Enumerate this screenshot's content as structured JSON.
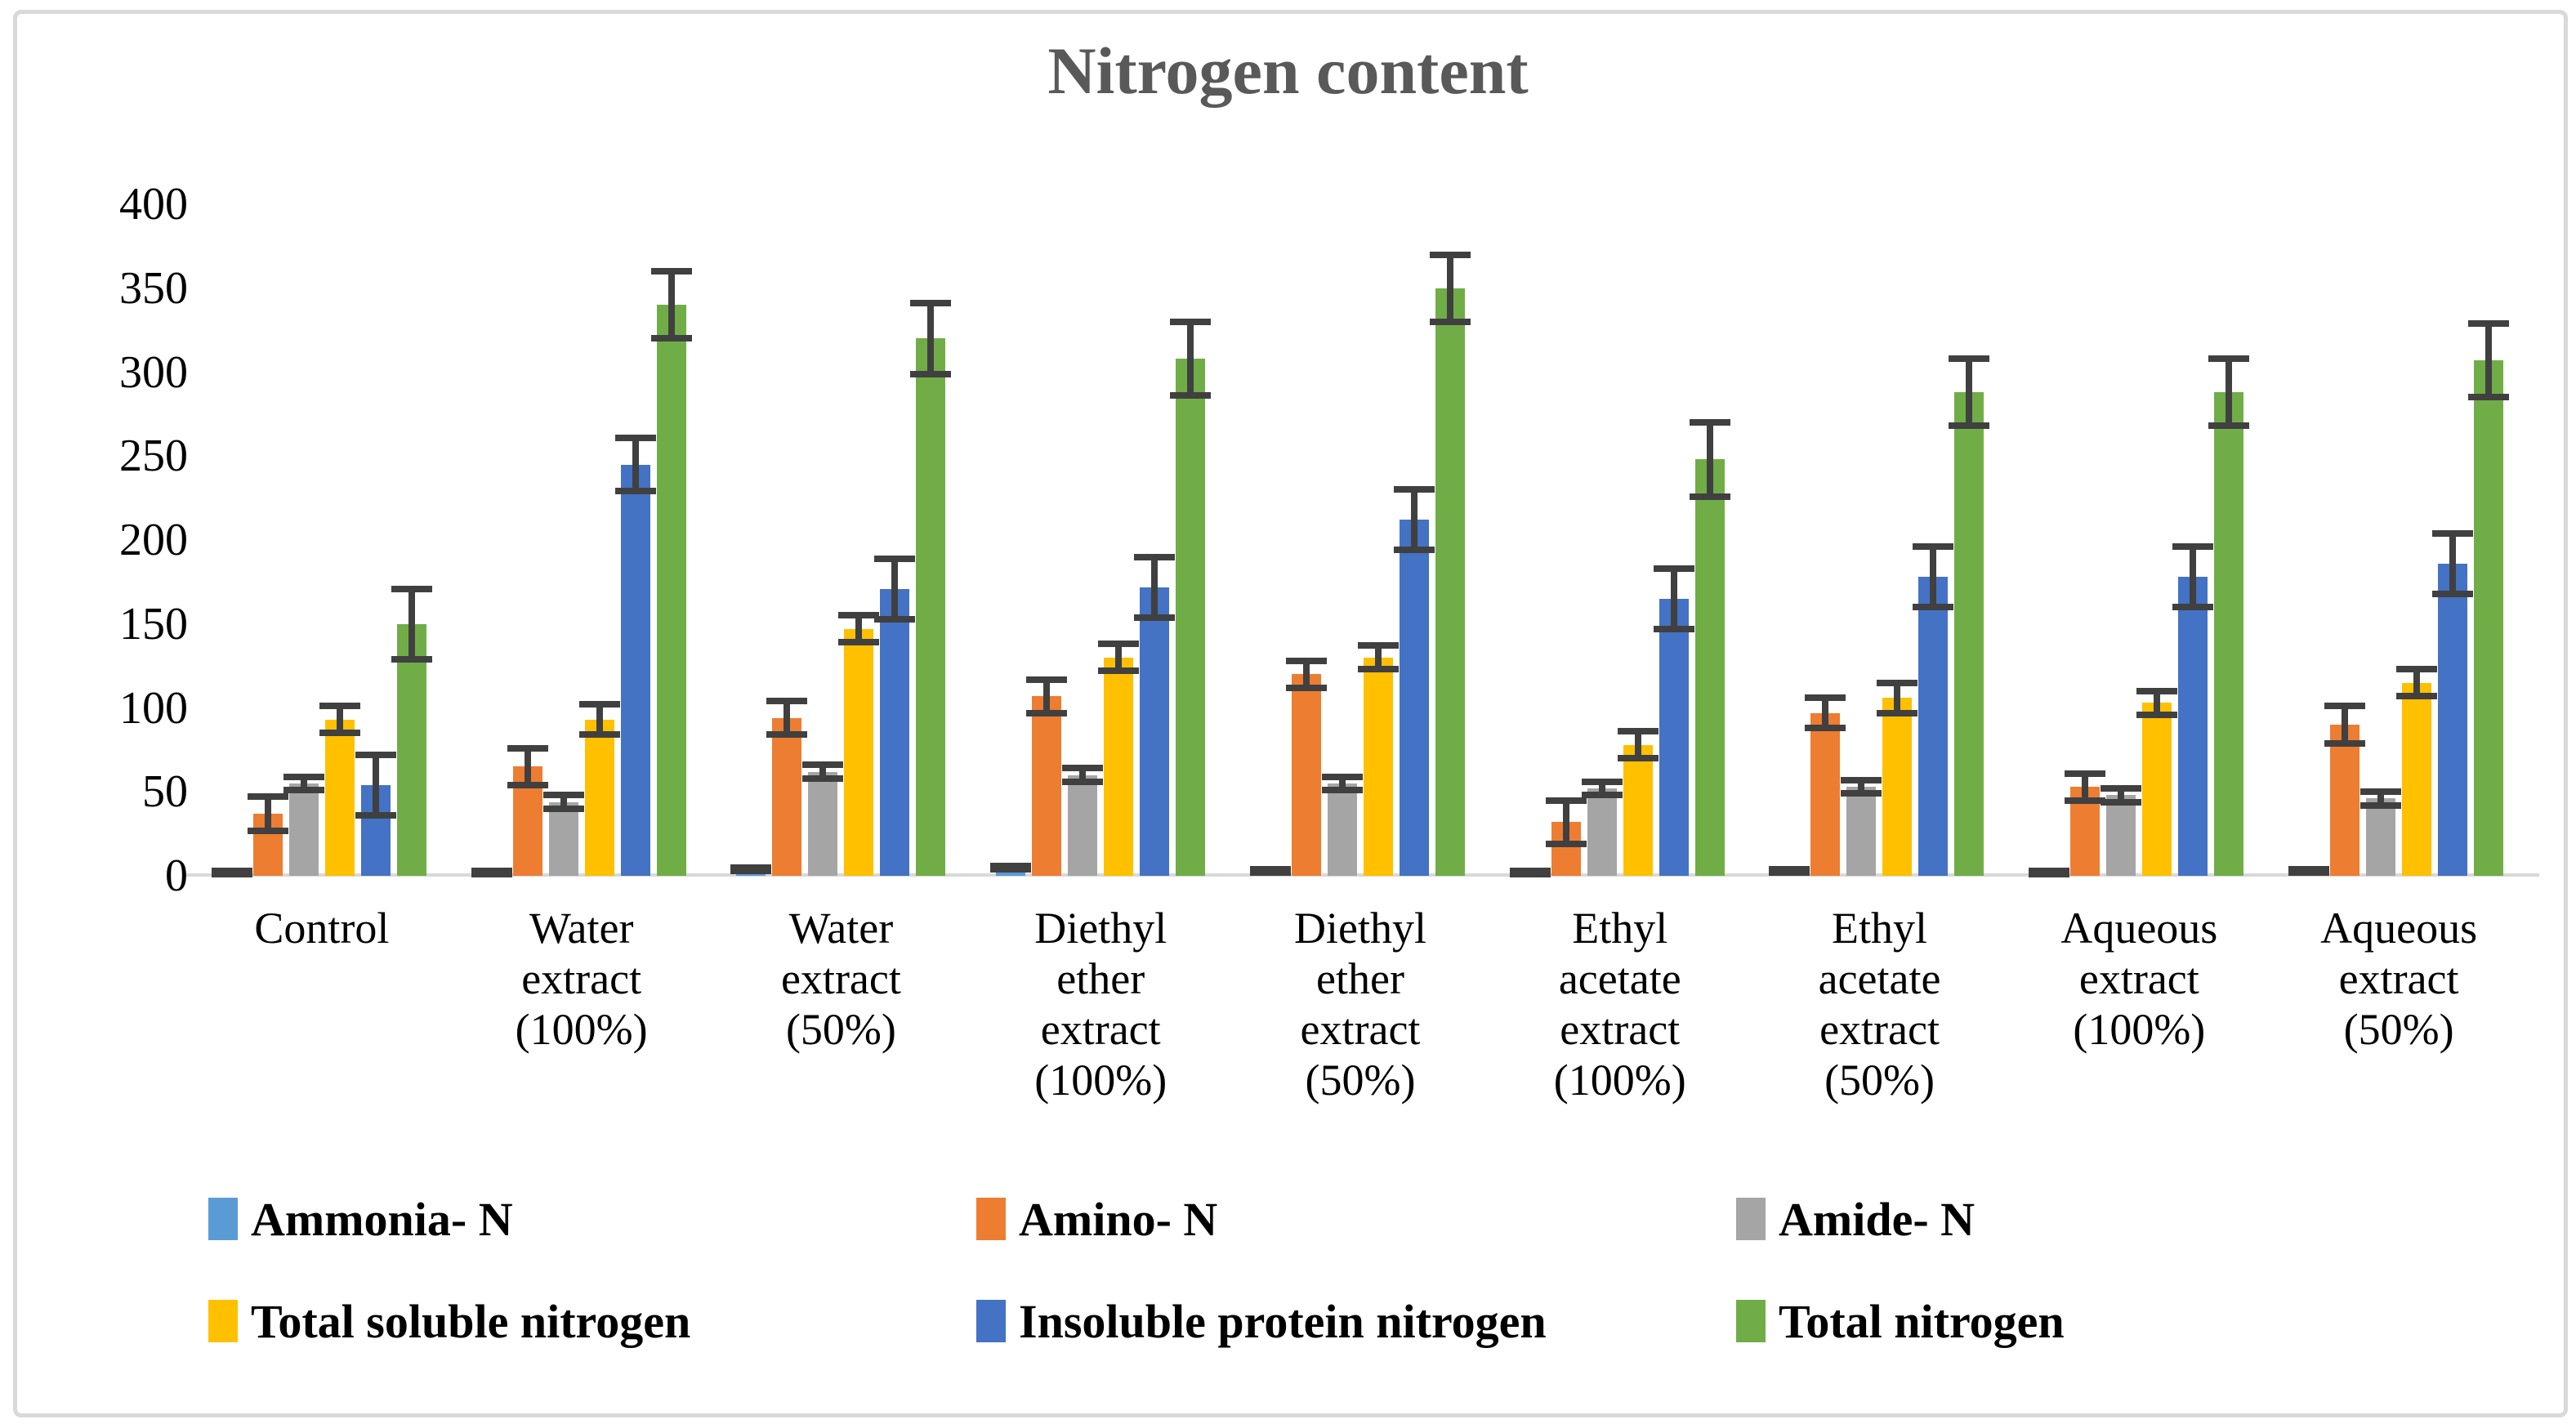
{
  "title": "Nitrogen content",
  "y_axis": {
    "tick_labels": [
      "0",
      "50",
      "100",
      "150",
      "200",
      "250",
      "300",
      "350",
      "400"
    ]
  },
  "chart_data": {
    "type": "bar",
    "title": "Nitrogen content",
    "xlabel": "",
    "ylabel": "",
    "ylim": [
      0,
      400
    ],
    "ytick_step": 50,
    "grid": false,
    "legend_position": "bottom",
    "error_bars": true,
    "categories": [
      "Control",
      "Water extract (100%)",
      "Water extract (50%)",
      "Diethyl ether extract (100%)",
      "Diethyl ether extract (50%)",
      "Ethyl acetate extract (100%)",
      "Ethyl acetate extract (50%)",
      "Aqueous extract (100%)",
      "Aqueous extract (50%)"
    ],
    "categories_multiline": [
      "Control",
      "Water\nextract\n(100%)",
      "Water\nextract\n(50%)",
      "Diethyl\nether\nextract\n(100%)",
      "Diethyl\nether\nextract\n(50%)",
      "Ethyl\nacetate\nextract\n(100%)",
      "Ethyl\nacetate\nextract\n(50%)",
      "Aqueous\nextract\n(100%)",
      "Aqueous\nextract\n(50%)"
    ],
    "series": [
      {
        "name": "Ammonia- N",
        "color": "#5B9BD5",
        "values": [
          2,
          2,
          4,
          5,
          3,
          2,
          3,
          2,
          3
        ],
        "errors": [
          1,
          1,
          1,
          1,
          1,
          1,
          1,
          1,
          1
        ]
      },
      {
        "name": "Amino- N",
        "color": "#ED7D31",
        "values": [
          37,
          65,
          94,
          107,
          120,
          32,
          97,
          53,
          90
        ],
        "errors": [
          10,
          11,
          10,
          10,
          8,
          13,
          9,
          8,
          11
        ]
      },
      {
        "name": "Amide- N",
        "color": "#A5A5A5",
        "values": [
          55,
          44,
          62,
          60,
          55,
          52,
          53,
          48,
          46
        ],
        "errors": [
          4,
          4,
          4,
          4,
          4,
          4,
          4,
          4,
          4
        ]
      },
      {
        "name": "Total soluble nitrogen",
        "color": "#FFC000",
        "values": [
          93,
          93,
          147,
          130,
          130,
          78,
          106,
          103,
          115
        ],
        "errors": [
          8,
          9,
          8,
          8,
          7,
          8,
          9,
          7,
          8
        ]
      },
      {
        "name": "Insoluble protein nitrogen",
        "color": "#4472C4",
        "values": [
          54,
          245,
          171,
          172,
          212,
          165,
          178,
          178,
          186
        ],
        "errors": [
          18,
          16,
          18,
          18,
          18,
          18,
          18,
          18,
          18
        ]
      },
      {
        "name": "Total nitrogen",
        "color": "#70AD47",
        "values": [
          150,
          340,
          320,
          308,
          350,
          248,
          288,
          288,
          307
        ],
        "errors": [
          21,
          20,
          21,
          22,
          20,
          22,
          20,
          20,
          22
        ]
      }
    ],
    "legend_rows": [
      [
        0,
        1,
        2
      ],
      [
        3,
        4,
        5
      ]
    ]
  },
  "colors": {
    "title_text": "#595959",
    "axis_text": "#000000",
    "axis_line": "#d9d9d9",
    "error_bar": "#404040",
    "frame_border": "#d9d9d9"
  }
}
